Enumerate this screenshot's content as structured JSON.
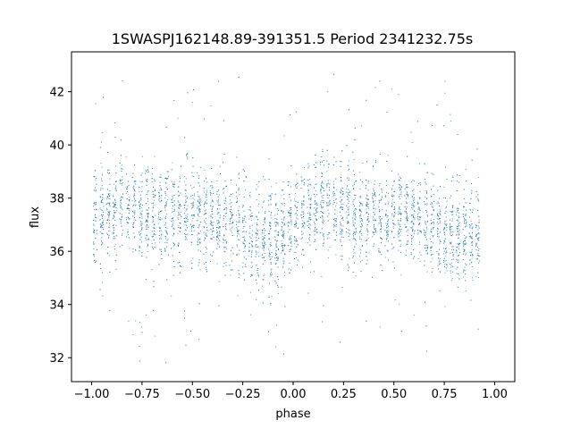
{
  "chart_data": {
    "type": "scatter",
    "title": "1SWASPJ162148.89-391351.5 Period 2341232.75s",
    "xlabel": "phase",
    "ylabel": "flux",
    "xlim": [
      -1.1,
      1.1
    ],
    "ylim": [
      31.1,
      43.5
    ],
    "xticks": [
      -1.0,
      -0.75,
      -0.5,
      -0.25,
      0.0,
      0.25,
      0.5,
      0.75,
      1.0
    ],
    "xtick_labels": [
      "−1.00",
      "−0.75",
      "−0.50",
      "−0.25",
      "0.00",
      "0.25",
      "0.50",
      "0.75",
      "1.00"
    ],
    "yticks": [
      32,
      34,
      36,
      38,
      40,
      42
    ],
    "ytick_labels": [
      "32",
      "34",
      "36",
      "38",
      "40",
      "42"
    ],
    "grid": false,
    "marker_color": "#1f77b4",
    "phase_range": [
      -1.0,
      0.93
    ],
    "flux_median": 37.2,
    "flux_spread": 0.9,
    "flux_min": 31.6,
    "flux_max": 43.3
  }
}
